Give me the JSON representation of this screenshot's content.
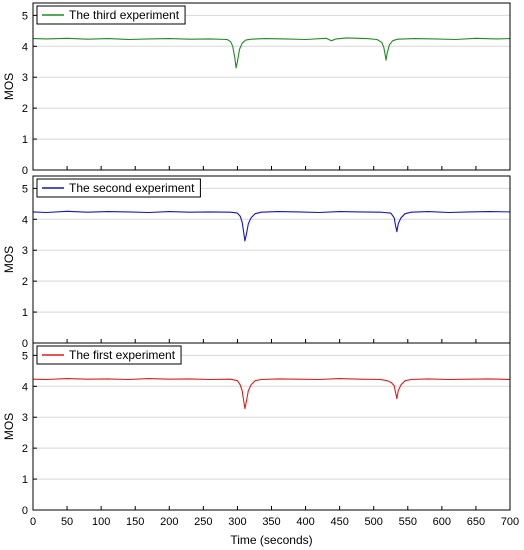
{
  "chart_data": {
    "type": "line",
    "xlabel": "Time (seconds)",
    "xlim": [
      0,
      700
    ],
    "x_ticks": [
      0,
      50,
      100,
      150,
      200,
      250,
      300,
      350,
      400,
      450,
      500,
      550,
      600,
      650,
      700
    ],
    "grid": "horizontal",
    "legend_position": "top-left",
    "panels": [
      {
        "series_name": "The third experiment",
        "color": "#1e8c1e",
        "ylabel": "MOS",
        "ylim": [
          0,
          5.4
        ],
        "y_ticks": [
          0,
          1,
          2,
          3,
          4,
          5
        ],
        "x": [
          0,
          20,
          50,
          80,
          110,
          140,
          170,
          200,
          230,
          260,
          285,
          290,
          293,
          296,
          298,
          300,
          303,
          307,
          312,
          320,
          340,
          370,
          400,
          430,
          438,
          445,
          460,
          490,
          505,
          512,
          515,
          517,
          518,
          520,
          523,
          528,
          535,
          560,
          590,
          620,
          650,
          680,
          700
        ],
        "y": [
          4.25,
          4.24,
          4.26,
          4.23,
          4.25,
          4.22,
          4.24,
          4.25,
          4.23,
          4.24,
          4.22,
          4.15,
          4.0,
          3.65,
          3.3,
          3.5,
          3.9,
          4.1,
          4.2,
          4.23,
          4.25,
          4.24,
          4.22,
          4.26,
          4.18,
          4.24,
          4.27,
          4.25,
          4.22,
          4.12,
          3.95,
          3.7,
          3.55,
          3.8,
          4.05,
          4.18,
          4.23,
          4.25,
          4.24,
          4.22,
          4.26,
          4.24,
          4.25
        ]
      },
      {
        "series_name": "The second experiment",
        "color": "#1414c8",
        "ylabel": "MOS",
        "ylim": [
          0,
          5.4
        ],
        "y_ticks": [
          0,
          1,
          2,
          3,
          4,
          5
        ],
        "x": [
          0,
          20,
          50,
          80,
          110,
          140,
          170,
          200,
          230,
          260,
          290,
          300,
          304,
          307,
          309,
          311,
          313,
          316,
          320,
          326,
          335,
          360,
          390,
          420,
          450,
          480,
          510,
          525,
          530,
          532,
          534,
          536,
          540,
          546,
          555,
          580,
          610,
          640,
          670,
          700
        ],
        "y": [
          4.24,
          4.22,
          4.26,
          4.23,
          4.25,
          4.24,
          4.22,
          4.25,
          4.23,
          4.24,
          4.23,
          4.2,
          4.1,
          3.9,
          3.6,
          3.3,
          3.5,
          3.85,
          4.05,
          4.18,
          4.23,
          4.25,
          4.24,
          4.22,
          4.25,
          4.24,
          4.23,
          4.2,
          4.05,
          3.8,
          3.6,
          3.85,
          4.05,
          4.18,
          4.23,
          4.25,
          4.22,
          4.24,
          4.25,
          4.24
        ]
      },
      {
        "series_name": "The first experiment",
        "color": "#e41a1a",
        "ylabel": "MOS",
        "ylim": [
          0,
          5.4
        ],
        "y_ticks": [
          0,
          1,
          2,
          3,
          4,
          5
        ],
        "x": [
          0,
          20,
          50,
          80,
          110,
          140,
          170,
          200,
          230,
          260,
          290,
          300,
          304,
          307,
          309,
          311,
          313,
          316,
          320,
          326,
          335,
          360,
          390,
          420,
          450,
          480,
          510,
          520,
          526,
          530,
          532,
          534,
          536,
          540,
          546,
          555,
          580,
          610,
          640,
          670,
          700
        ],
        "y": [
          4.23,
          4.22,
          4.25,
          4.23,
          4.24,
          4.22,
          4.25,
          4.23,
          4.24,
          4.22,
          4.23,
          4.18,
          4.05,
          3.85,
          3.55,
          3.28,
          3.5,
          3.85,
          4.05,
          4.18,
          4.22,
          4.24,
          4.23,
          4.22,
          4.25,
          4.23,
          4.22,
          4.18,
          4.12,
          4.02,
          3.8,
          3.6,
          3.85,
          4.05,
          4.18,
          4.22,
          4.24,
          4.22,
          4.23,
          4.24,
          4.22
        ]
      }
    ]
  }
}
